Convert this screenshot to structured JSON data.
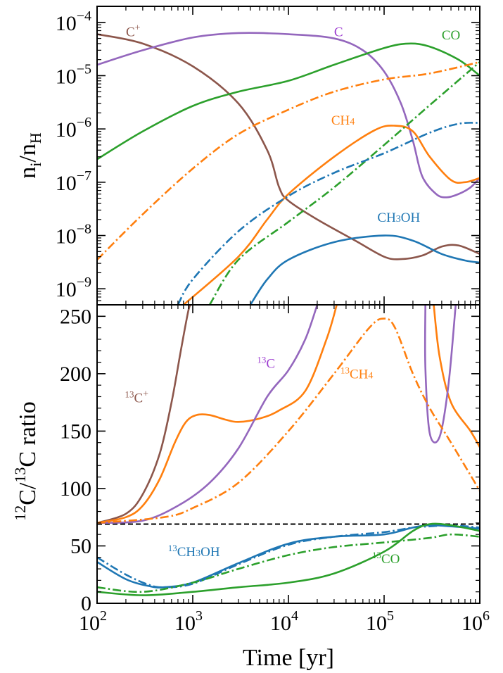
{
  "chart_data": [
    {
      "type": "line",
      "panel": "top",
      "xscale": "log",
      "yscale": "log",
      "xlim": [
        100,
        1000000
      ],
      "ylim": [
        5e-10,
        0.0002
      ],
      "ylabel": "n_i/n_H",
      "ytick_labels": [
        {
          "value": 1e-09,
          "base": "10",
          "exp": "−9"
        },
        {
          "value": 1e-08,
          "base": "10",
          "exp": "−8"
        },
        {
          "value": 1e-07,
          "base": "10",
          "exp": "−7"
        },
        {
          "value": 1e-06,
          "base": "10",
          "exp": "−6"
        },
        {
          "value": 1e-05,
          "base": "10",
          "exp": "−5"
        },
        {
          "value": 0.0001,
          "base": "10",
          "exp": "−4"
        }
      ],
      "annotations": [
        {
          "base": "C",
          "sup": "+",
          "sub": "",
          "pre": "",
          "color": "#8c564b",
          "x": 200,
          "y": 5.5e-05
        },
        {
          "base": "C",
          "sup": "",
          "sub": "",
          "pre": "",
          "color": "#9e3fd1",
          "x": 30000,
          "y": 5.5e-05
        },
        {
          "base": "CO",
          "sup": "",
          "sub": "",
          "pre": "",
          "color": "#2ca02c",
          "x": 400000,
          "y": 4.8e-05
        },
        {
          "base": "CH",
          "sup": "",
          "sub": "4",
          "pre": "",
          "color": "#ff7f0e",
          "x": 28000,
          "y": 1.2e-06
        },
        {
          "base": "CH",
          "sup": "",
          "sub": "3",
          "pre": "",
          "tail": "OH",
          "color": "#1f77b4",
          "x": 85000,
          "y": 1.8e-08
        }
      ],
      "series": [
        {
          "color": "#8c564b",
          "style": "solid",
          "points": [
            [
              100,
              6e-05
            ],
            [
              300,
              4e-05
            ],
            [
              1000,
              1.5e-05
            ],
            [
              3000,
              3e-06
            ],
            [
              6000,
              4e-07
            ],
            [
              8000,
              8e-08
            ],
            [
              10000,
              4.5e-08
            ],
            [
              20000,
              2e-08
            ],
            [
              50000,
              8e-09
            ],
            [
              100000,
              4e-09
            ],
            [
              150000,
              3.6e-09
            ],
            [
              250000,
              4.2e-09
            ],
            [
              400000,
              6.2e-09
            ],
            [
              600000,
              6.5e-09
            ],
            [
              1000000,
              4.5e-09
            ]
          ]
        },
        {
          "color": "#9467bd",
          "style": "solid",
          "points": [
            [
              100,
              1.6e-05
            ],
            [
              300,
              3e-05
            ],
            [
              1000,
              5.2e-05
            ],
            [
              3000,
              6.3e-05
            ],
            [
              10000,
              6e-05
            ],
            [
              30000,
              5e-05
            ],
            [
              60000,
              3e-05
            ],
            [
              100000,
              1.2e-05
            ],
            [
              150000,
              3e-06
            ],
            [
              200000,
              6e-07
            ],
            [
              250000,
              1.3e-07
            ],
            [
              350000,
              6e-08
            ],
            [
              450000,
              5.2e-08
            ],
            [
              600000,
              6e-08
            ],
            [
              800000,
              8e-08
            ],
            [
              1000000,
              1.2e-07
            ]
          ]
        },
        {
          "color": "#2ca02c",
          "style": "solid",
          "points": [
            [
              100,
              2.7e-07
            ],
            [
              300,
              9e-07
            ],
            [
              1000,
              2.7e-06
            ],
            [
              3000,
              5e-06
            ],
            [
              10000,
              8e-06
            ],
            [
              30000,
              1.6e-05
            ],
            [
              100000,
              3.3e-05
            ],
            [
              180000,
              4e-05
            ],
            [
              300000,
              3.5e-05
            ],
            [
              600000,
              2e-05
            ],
            [
              1000000,
              1e-05
            ]
          ]
        },
        {
          "color": "#ff7f0e",
          "style": "solid",
          "points": [
            [
              800,
              5e-10
            ],
            [
              3000,
              4e-09
            ],
            [
              6000,
              2e-08
            ],
            [
              10000,
              6e-08
            ],
            [
              30000,
              3e-07
            ],
            [
              80000,
              9.5e-07
            ],
            [
              130000,
              1.15e-06
            ],
            [
              200000,
              9e-07
            ],
            [
              300000,
              3e-07
            ],
            [
              500000,
              1.1e-07
            ],
            [
              700000,
              1e-07
            ],
            [
              1000000,
              1.2e-07
            ]
          ]
        },
        {
          "color": "#1f77b4",
          "style": "solid",
          "points": [
            [
              4000,
              5e-10
            ],
            [
              6000,
              1.5e-09
            ],
            [
              10000,
              3.5e-09
            ],
            [
              30000,
              7.5e-09
            ],
            [
              100000,
              1e-08
            ],
            [
              200000,
              8e-09
            ],
            [
              400000,
              4.5e-09
            ],
            [
              700000,
              3.4e-09
            ],
            [
              1000000,
              3.1e-09
            ]
          ]
        },
        {
          "color": "#ff7f0e",
          "style": "dashdot",
          "points": [
            [
              100,
              3.5e-09
            ],
            [
              300,
              2.5e-08
            ],
            [
              1000,
              1.8e-07
            ],
            [
              3000,
              8e-07
            ],
            [
              10000,
              2.3e-06
            ],
            [
              30000,
              5e-06
            ],
            [
              100000,
              8.5e-06
            ],
            [
              300000,
              1.1e-05
            ],
            [
              1000000,
              1.8e-05
            ]
          ]
        },
        {
          "color": "#2ca02c",
          "style": "dashdot",
          "points": [
            [
              1500,
              5e-10
            ],
            [
              3000,
              3.5e-09
            ],
            [
              10000,
              1.8e-08
            ],
            [
              30000,
              8e-08
            ],
            [
              100000,
              5e-07
            ],
            [
              300000,
              2.8e-06
            ],
            [
              1000000,
              1.8e-05
            ]
          ]
        },
        {
          "color": "#1f77b4",
          "style": "dashdot",
          "points": [
            [
              700,
              5e-10
            ],
            [
              1000,
              1.5e-09
            ],
            [
              3000,
              1.2e-08
            ],
            [
              10000,
              5.5e-08
            ],
            [
              30000,
              1.5e-07
            ],
            [
              100000,
              3.5e-07
            ],
            [
              300000,
              8.5e-07
            ],
            [
              600000,
              1.25e-06
            ],
            [
              1000000,
              1.3e-06
            ]
          ]
        }
      ]
    },
    {
      "type": "line",
      "panel": "bottom",
      "xscale": "log",
      "xlim": [
        100,
        1000000
      ],
      "ylim": [
        0,
        260
      ],
      "xlabel": "Time [yr]",
      "ylabel": {
        "sup1": "12",
        "mid": "C/",
        "sup2": "13",
        "tail": "C ratio"
      },
      "ytick_labels": [
        "0",
        "50",
        "100",
        "150",
        "200",
        "250"
      ],
      "ytick_values": [
        0,
        50,
        100,
        150,
        200,
        250
      ],
      "xtick_labels": [
        {
          "value": 100,
          "base": "10",
          "exp": "2"
        },
        {
          "value": 1000,
          "base": "10",
          "exp": "3"
        },
        {
          "value": 10000,
          "base": "10",
          "exp": "4"
        },
        {
          "value": 100000,
          "base": "10",
          "exp": "5"
        },
        {
          "value": 1000000,
          "base": "10",
          "exp": "6"
        }
      ],
      "reference_line": {
        "y": 69,
        "color": "#000000",
        "style": "dashed"
      },
      "annotations": [
        {
          "pre": "13",
          "base": "C",
          "sup": "+",
          "sub": "",
          "color": "#8c564b",
          "x": 195,
          "y": 175
        },
        {
          "pre": "13",
          "base": "C",
          "sup": "",
          "sub": "",
          "color": "#9e3fd1",
          "x": 4700,
          "y": 205
        },
        {
          "pre": "13",
          "base": "CH",
          "sup": "",
          "sub": "4",
          "color": "#ff7f0e",
          "x": 35000,
          "y": 196
        },
        {
          "pre": "13",
          "base": "CH",
          "sup": "",
          "sub": "3",
          "tail": "OH",
          "color": "#1f77b4",
          "x": 550,
          "y": 41
        },
        {
          "pre": "13",
          "base": "CO",
          "sup": "",
          "sub": "",
          "color": "#2ca02c",
          "x": 75000,
          "y": 35
        }
      ],
      "series": [
        {
          "color": "#8c564b",
          "style": "solid",
          "points": [
            [
              100,
              70
            ],
            [
              200,
              78
            ],
            [
              300,
              95
            ],
            [
              450,
              130
            ],
            [
              600,
              175
            ],
            [
              750,
              220
            ],
            [
              900,
              255
            ],
            [
              960,
              260
            ]
          ]
        },
        {
          "color": "#ff7f0e",
          "style": "solid",
          "points": [
            [
              100,
              70
            ],
            [
              200,
              75
            ],
            [
              300,
              85
            ],
            [
              450,
              108
            ],
            [
              650,
              140
            ],
            [
              850,
              158
            ],
            [
              1100,
              164
            ],
            [
              1500,
              164
            ],
            [
              2200,
              160
            ],
            [
              3000,
              158
            ],
            [
              5000,
              161
            ],
            [
              8000,
              168
            ],
            [
              15000,
              185
            ],
            [
              25000,
              230
            ],
            [
              32000,
              260
            ]
          ]
        },
        {
          "color": "#ff7f0e",
          "style": "solid",
          "points": [
            [
              330000,
              260
            ],
            [
              380000,
              215
            ],
            [
              500000,
              175
            ],
            [
              800000,
              150
            ],
            [
              1000000,
              136
            ]
          ]
        },
        {
          "color": "#9467bd",
          "style": "solid",
          "points": [
            [
              100,
              70
            ],
            [
              300,
              72
            ],
            [
              700,
              85
            ],
            [
              1500,
              105
            ],
            [
              3000,
              135
            ],
            [
              6000,
              180
            ],
            [
              10000,
              203
            ],
            [
              15000,
              230
            ],
            [
              20000,
              260
            ]
          ]
        },
        {
          "color": "#9467bd",
          "style": "solid",
          "points": [
            [
              270000,
              260
            ],
            [
              270000,
              205
            ],
            [
              300000,
              148
            ],
            [
              380000,
              145
            ],
            [
              470000,
              190
            ],
            [
              560000,
              260
            ]
          ]
        },
        {
          "color": "#ff7f0e",
          "style": "dashdot",
          "points": [
            [
              100,
              70
            ],
            [
              500,
              75
            ],
            [
              1000,
              83
            ],
            [
              3000,
              105
            ],
            [
              10000,
              150
            ],
            [
              30000,
              200
            ],
            [
              70000,
              240
            ],
            [
              100000,
              248
            ],
            [
              130000,
              240
            ],
            [
              200000,
              200
            ],
            [
              300000,
              170
            ],
            [
              500000,
              140
            ],
            [
              1000000,
              98
            ]
          ]
        },
        {
          "color": "#1f77b4",
          "style": "solid",
          "points": [
            [
              100,
              36
            ],
            [
              200,
              21
            ],
            [
              350,
              15
            ],
            [
              500,
              14
            ],
            [
              1000,
              18
            ],
            [
              3000,
              35
            ],
            [
              10000,
              52
            ],
            [
              30000,
              58
            ],
            [
              100000,
              60
            ],
            [
              200000,
              66
            ],
            [
              300000,
              68
            ],
            [
              500000,
              67
            ],
            [
              1000000,
              65
            ]
          ]
        },
        {
          "color": "#1f77b4",
          "style": "dashdot",
          "points": [
            [
              100,
              40
            ],
            [
              200,
              25
            ],
            [
              350,
              16
            ],
            [
              500,
              14
            ],
            [
              1000,
              17
            ],
            [
              3000,
              34
            ],
            [
              10000,
              51
            ],
            [
              30000,
              58
            ],
            [
              100000,
              62
            ],
            [
              200000,
              66
            ],
            [
              300000,
              67
            ],
            [
              500000,
              68
            ],
            [
              1000000,
              66
            ]
          ]
        },
        {
          "color": "#2ca02c",
          "style": "solid",
          "points": [
            [
              100,
              10
            ],
            [
              300,
              7
            ],
            [
              1000,
              10
            ],
            [
              3000,
              14
            ],
            [
              10000,
              18
            ],
            [
              30000,
              26
            ],
            [
              100000,
              45
            ],
            [
              200000,
              63
            ],
            [
              300000,
              69
            ],
            [
              500000,
              68
            ],
            [
              1000000,
              63
            ]
          ]
        },
        {
          "color": "#2ca02c",
          "style": "dashdot",
          "points": [
            [
              100,
              14
            ],
            [
              300,
              10
            ],
            [
              1000,
              18
            ],
            [
              3000,
              30
            ],
            [
              10000,
              42
            ],
            [
              30000,
              49
            ],
            [
              100000,
              53
            ],
            [
              300000,
              57
            ],
            [
              500000,
              60
            ],
            [
              1000000,
              58
            ]
          ]
        }
      ]
    }
  ]
}
